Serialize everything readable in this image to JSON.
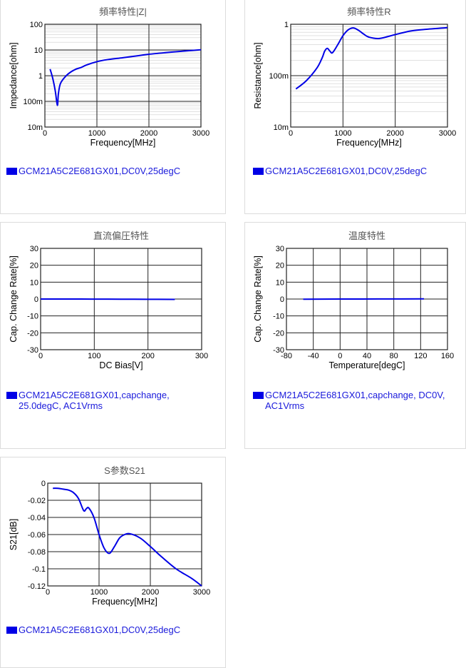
{
  "charts": [
    {
      "id": "impedance",
      "chart_data": {
        "type": "line",
        "title": "頻率特性|Z|",
        "xlabel": "Frequency[MHz]",
        "ylabel": "Impedance[ohm]",
        "xlim": [
          0,
          3000
        ],
        "ylim": [
          0.01,
          100
        ],
        "yscale": "log",
        "grid": true,
        "xticks": [
          0,
          1000,
          2000,
          3000
        ],
        "xtick_labels": [
          "0",
          "1000",
          "2000",
          "3000"
        ],
        "yticks": [
          0.01,
          0.1,
          1,
          10,
          100
        ],
        "ytick_labels": [
          "10m",
          "100m",
          "1",
          "10",
          "100"
        ],
        "series": [
          {
            "name": "GCM21A5C2E681GX01,DC0V,25degC",
            "color": "#0000e6",
            "x": [
              100,
              150,
              200,
              240,
              260,
              300,
              400,
              500,
              600,
              700,
              800,
              1000,
              1200,
              1500,
              1800,
              2000,
              2300,
              2600,
              3000
            ],
            "y": [
              1.8,
              0.8,
              0.25,
              0.07,
              0.2,
              0.5,
              0.95,
              1.4,
              1.8,
              2.1,
              2.6,
              3.5,
              4.2,
              5.0,
              6.0,
              6.8,
              7.8,
              8.8,
              10.2
            ]
          }
        ]
      },
      "legend_text": "GCM21A5C2E681GX01,DC0V,25degC"
    },
    {
      "id": "resistance",
      "chart_data": {
        "type": "line",
        "title": "頻率特性R",
        "xlabel": "Frequency[MHz]",
        "ylabel": "Resistance[ohm]",
        "xlim": [
          0,
          3000
        ],
        "ylim": [
          0.01,
          1
        ],
        "yscale": "log",
        "grid": true,
        "xticks": [
          0,
          1000,
          2000,
          3000
        ],
        "xtick_labels": [
          "0",
          "1000",
          "2000",
          "3000"
        ],
        "yticks": [
          0.01,
          0.1,
          1
        ],
        "ytick_labels": [
          "10m",
          "100m",
          "1"
        ],
        "series": [
          {
            "name": "GCM21A5C2E681GX01,DC0V,25degC",
            "color": "#0000e6",
            "x": [
              100,
              300,
              500,
              600,
              650,
              700,
              750,
              800,
              900,
              1000,
              1100,
              1200,
              1300,
              1400,
              1500,
              1700,
              2000,
              2300,
              2600,
              3000
            ],
            "y": [
              0.055,
              0.08,
              0.14,
              0.22,
              0.3,
              0.34,
              0.3,
              0.28,
              0.4,
              0.6,
              0.78,
              0.85,
              0.76,
              0.64,
              0.56,
              0.53,
              0.63,
              0.74,
              0.8,
              0.86
            ]
          }
        ]
      },
      "legend_text": "GCM21A5C2E681GX01,DC0V,25degC"
    },
    {
      "id": "dcbias",
      "chart_data": {
        "type": "line",
        "title": "直流偏圧特性",
        "xlabel": "DC Bias[V]",
        "ylabel": "Cap. Change Rate[%]",
        "xlim": [
          0,
          300
        ],
        "ylim": [
          -30,
          30
        ],
        "grid": true,
        "xticks": [
          0,
          100,
          200,
          300
        ],
        "xtick_labels": [
          "0",
          "100",
          "200",
          "300"
        ],
        "yticks": [
          -30,
          -20,
          -10,
          0,
          10,
          20,
          30
        ],
        "ytick_labels": [
          "-30",
          "-20",
          "-10",
          "0",
          "10",
          "20",
          "30"
        ],
        "series": [
          {
            "name": "GCM21A5C2E681GX01,capchange, 25.0degC, AC1Vrms",
            "color": "#0000e6",
            "x": [
              0,
              50,
              100,
              150,
              200,
              250
            ],
            "y": [
              0,
              0,
              -0.05,
              -0.1,
              -0.15,
              -0.2
            ]
          }
        ]
      },
      "legend_lines": [
        "GCM21A5C2E681GX01,capchange,",
        "25.0degC, AC1Vrms"
      ]
    },
    {
      "id": "temperature",
      "chart_data": {
        "type": "line",
        "title": "温度特性",
        "xlabel": "Temperature[degC]",
        "ylabel": "Cap. Change Rate[%]",
        "xlim": [
          -80,
          160
        ],
        "ylim": [
          -30,
          30
        ],
        "grid": true,
        "xticks": [
          -80,
          -40,
          0,
          40,
          80,
          120,
          160
        ],
        "xtick_labels": [
          "-80",
          "-40",
          "0",
          "40",
          "80",
          "120",
          "160"
        ],
        "yticks": [
          -30,
          -20,
          -10,
          0,
          10,
          20,
          30
        ],
        "ytick_labels": [
          "-30",
          "-20",
          "-10",
          "0",
          "10",
          "20",
          "30"
        ],
        "series": [
          {
            "name": "GCM21A5C2E681GX01,capchange, DC0V, AC1Vrms",
            "color": "#0000e6",
            "x": [
              -55,
              0,
              25,
              80,
              125
            ],
            "y": [
              -0.1,
              0,
              0,
              0.05,
              0.1
            ]
          }
        ]
      },
      "legend_lines": [
        "GCM21A5C2E681GX01,capchange, DC0V,",
        "AC1Vrms"
      ]
    },
    {
      "id": "s21",
      "chart_data": {
        "type": "line",
        "title": "S参数S21",
        "xlabel": "Frequency[MHz]",
        "ylabel": "S21[dB]",
        "xlim": [
          0,
          3000
        ],
        "ylim": [
          -0.12,
          0
        ],
        "grid": true,
        "xticks": [
          0,
          1000,
          2000,
          3000
        ],
        "xtick_labels": [
          "0",
          "1000",
          "2000",
          "3000"
        ],
        "yticks": [
          -0.12,
          -0.1,
          -0.08,
          -0.06,
          -0.04,
          -0.02,
          0
        ],
        "ytick_labels": [
          "-0.12",
          "-0.1",
          "-0.08",
          "-0.06",
          "-0.04",
          "-0.02",
          "0"
        ],
        "series": [
          {
            "name": "GCM21A5C2E681GX01,DC0V,25degC",
            "color": "#0000e6",
            "x": [
              100,
              200,
              300,
              400,
              500,
              600,
              700,
              750,
              800,
              900,
              1000,
              1100,
              1200,
              1300,
              1400,
              1500,
              1600,
              1800,
              2000,
              2200,
              2500,
              2800,
              3000
            ],
            "y": [
              -0.006,
              -0.006,
              -0.007,
              -0.008,
              -0.011,
              -0.018,
              -0.032,
              -0.03,
              -0.029,
              -0.04,
              -0.06,
              -0.076,
              -0.082,
              -0.074,
              -0.064,
              -0.06,
              -0.059,
              -0.064,
              -0.074,
              -0.085,
              -0.1,
              -0.111,
              -0.12
            ]
          }
        ]
      },
      "legend_text": "GCM21A5C2E681GX01,DC0V,25degC"
    }
  ]
}
